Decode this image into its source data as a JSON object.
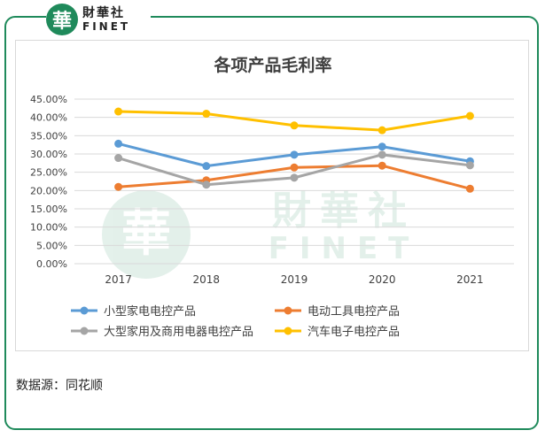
{
  "brand": {
    "mark": "華",
    "name_cn": "財華社",
    "name_en": "FINET"
  },
  "watermark": {
    "mark": "華",
    "name_cn": "財華社",
    "name_en": "FINET"
  },
  "source": "数据源：同花顺",
  "chart_data": {
    "type": "line",
    "title": "各项产品毛利率",
    "x": [
      "2017",
      "2018",
      "2019",
      "2020",
      "2021"
    ],
    "ylim": [
      0,
      45
    ],
    "yticks": [
      "0.00%",
      "5.00%",
      "10.00%",
      "15.00%",
      "20.00%",
      "25.00%",
      "30.00%",
      "35.00%",
      "40.00%",
      "45.00%"
    ],
    "grid": true,
    "legend_position": "bottom",
    "series": [
      {
        "name": "小型家电电控产品",
        "color": "#5b9bd5",
        "values": [
          32.8,
          26.7,
          29.8,
          32.0,
          28.0
        ]
      },
      {
        "name": "电动工具电控产品",
        "color": "#ed7d31",
        "values": [
          21.0,
          22.8,
          26.3,
          26.8,
          20.5
        ]
      },
      {
        "name": "大型家用及商用电器电控产品",
        "color": "#a5a5a5",
        "values": [
          28.9,
          21.6,
          23.5,
          29.8,
          26.9
        ]
      },
      {
        "name": "汽车电子电控产品",
        "color": "#ffc000",
        "values": [
          41.6,
          41.0,
          37.8,
          36.5,
          40.4
        ]
      }
    ]
  }
}
